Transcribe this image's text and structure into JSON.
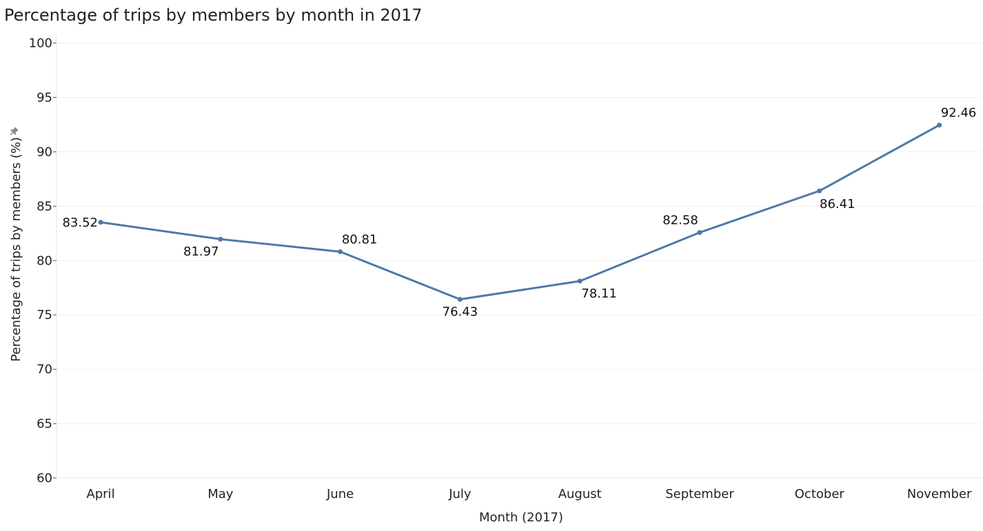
{
  "chart_data": {
    "type": "line",
    "title": "Percentage of trips by members by month in 2017",
    "xlabel": "Month (2017)",
    "ylabel": "Percentage of trips by members (%)",
    "categories": [
      "April",
      "May",
      "June",
      "July",
      "August",
      "September",
      "October",
      "November"
    ],
    "series": [
      {
        "values": [
          83.52,
          81.97,
          80.81,
          76.43,
          78.11,
          82.58,
          86.41,
          92.46
        ],
        "color": "#4e79a7"
      }
    ],
    "ylim": [
      60,
      100
    ],
    "yticks": [
      60,
      65,
      70,
      75,
      80,
      85,
      90,
      95,
      100
    ],
    "grid": true,
    "legend": "none"
  }
}
